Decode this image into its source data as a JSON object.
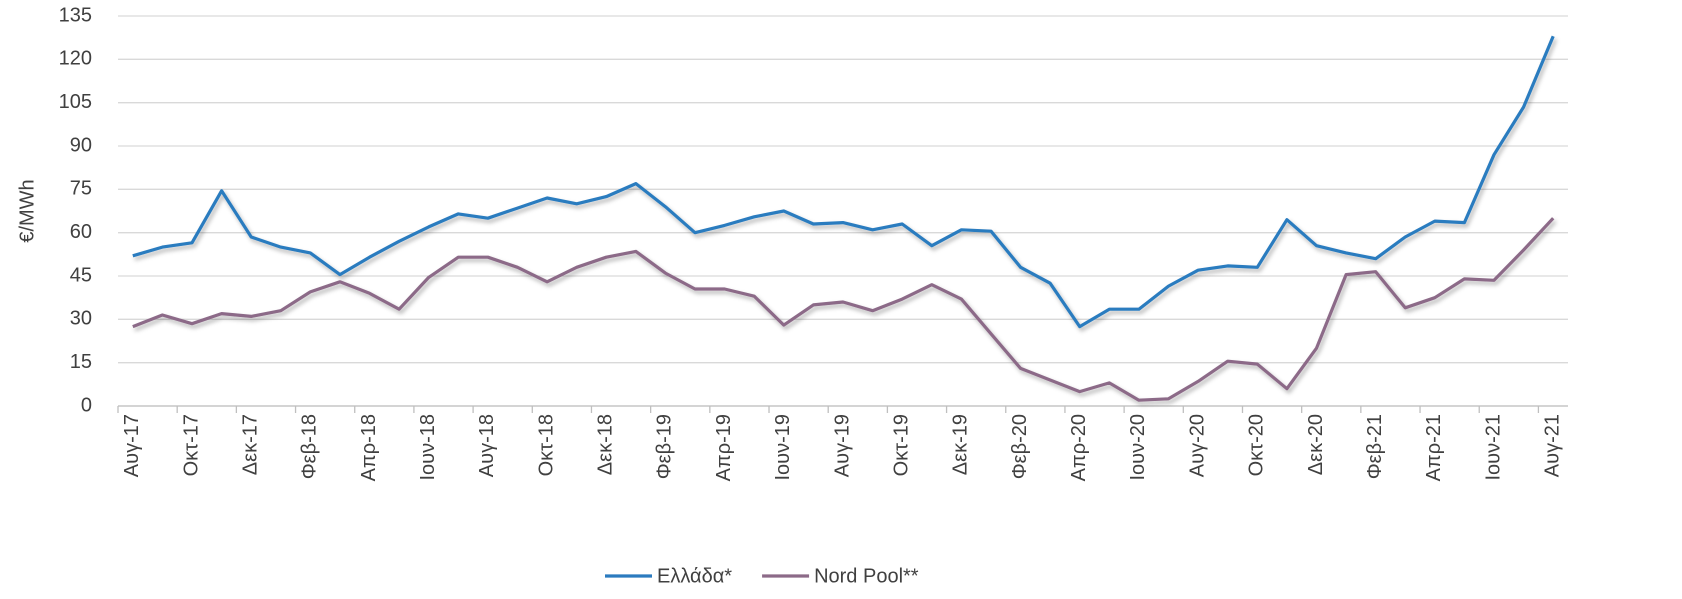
{
  "chart_data": {
    "type": "line",
    "y_label": "€/MWh",
    "categories": [
      "Αυγ-17",
      null,
      "Οκτ-17",
      null,
      "Δεκ-17",
      null,
      "Φεβ-18",
      null,
      "Απρ-18",
      null,
      "Ιουν-18",
      null,
      "Αυγ-18",
      null,
      "Οκτ-18",
      null,
      "Δεκ-18",
      null,
      "Φεβ-19",
      null,
      "Απρ-19",
      null,
      "Ιουν-19",
      null,
      "Αυγ-19",
      null,
      "Οκτ-19",
      null,
      "Δεκ-19",
      null,
      "Φεβ-20",
      null,
      "Απρ-20",
      null,
      "Ιουν-20",
      null,
      "Αυγ-20",
      null,
      "Οκτ-20",
      null,
      "Δεκ-20",
      null,
      "Φεβ-21",
      null,
      "Απρ-21",
      null,
      "Ιουν-21",
      null,
      "Αυγ-21"
    ],
    "series": [
      {
        "name": "Ελλάδα*",
        "color": "#2b7bbf",
        "values": [
          52,
          55,
          56.5,
          74.5,
          58.5,
          55,
          53,
          45.5,
          51.5,
          57,
          62,
          66.5,
          65,
          68.5,
          72,
          70,
          72.5,
          77,
          69,
          60,
          62.5,
          65.5,
          67.5,
          63,
          63.5,
          61,
          63,
          55.5,
          61,
          60.5,
          48,
          42.5,
          27.5,
          33.5,
          33.5,
          41.5,
          47,
          48.5,
          48,
          64.5,
          55.5,
          53,
          51,
          58.5,
          64,
          63.5,
          87,
          103.5,
          128
        ]
      },
      {
        "name": "Nord Pool**",
        "color": "#8c6a88",
        "values": [
          27.5,
          31.5,
          28.5,
          32,
          31,
          33,
          39.5,
          43,
          39,
          33.5,
          44.5,
          51.5,
          51.5,
          48,
          43,
          48,
          51.5,
          53.5,
          46,
          40.5,
          40.5,
          38,
          28,
          35,
          36,
          33,
          37,
          42,
          37,
          25,
          13,
          9,
          5,
          8,
          2,
          2.5,
          8.5,
          15.5,
          14.5,
          6,
          20,
          45.5,
          46.5,
          34,
          37.5,
          44,
          43.5,
          54,
          65
        ]
      }
    ],
    "ylim": [
      0,
      135
    ],
    "yticks": [
      0,
      15,
      30,
      45,
      60,
      75,
      90,
      105,
      120,
      135
    ],
    "grid": true
  }
}
